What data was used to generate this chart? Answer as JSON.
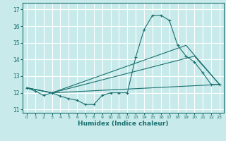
{
  "title": "",
  "xlabel": "Humidex (Indice chaleur)",
  "background_color": "#c8eaea",
  "grid_color": "#ffffff",
  "line_color": "#1a7070",
  "xlim": [
    -0.5,
    23.5
  ],
  "ylim": [
    10.8,
    17.4
  ],
  "yticks": [
    11,
    12,
    13,
    14,
    15,
    16,
    17
  ],
  "xticks": [
    0,
    1,
    2,
    3,
    4,
    5,
    6,
    7,
    8,
    9,
    10,
    11,
    12,
    13,
    14,
    15,
    16,
    17,
    18,
    19,
    20,
    21,
    22,
    23
  ],
  "line1_x": [
    0,
    1,
    2,
    3,
    4,
    5,
    6,
    7,
    8,
    9,
    10,
    11,
    12,
    13,
    14,
    15,
    16,
    17,
    18,
    19,
    20,
    21,
    22,
    23
  ],
  "line1_y": [
    12.3,
    12.1,
    11.85,
    12.0,
    11.8,
    11.65,
    11.55,
    11.3,
    11.3,
    11.85,
    12.0,
    12.0,
    12.0,
    14.15,
    15.8,
    16.65,
    16.65,
    16.35,
    14.85,
    14.2,
    13.85,
    13.2,
    12.5,
    12.5
  ],
  "line2_x": [
    0,
    3,
    23
  ],
  "line2_y": [
    12.3,
    12.0,
    12.5
  ],
  "line3_x": [
    0,
    3,
    19,
    23
  ],
  "line3_y": [
    12.3,
    12.0,
    14.85,
    12.5
  ],
  "line4_x": [
    0,
    3,
    20,
    23
  ],
  "line4_y": [
    12.3,
    12.0,
    14.2,
    12.5
  ]
}
